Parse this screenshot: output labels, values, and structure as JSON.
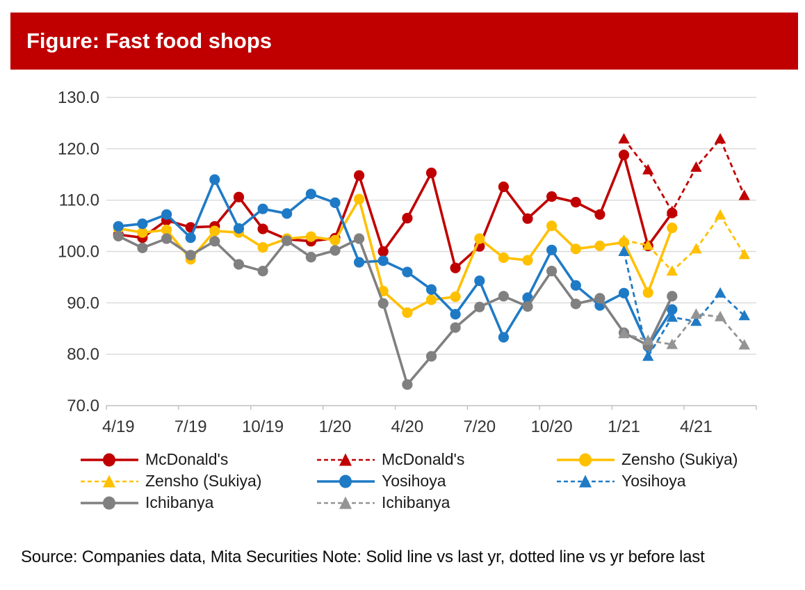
{
  "page": {
    "title": "Figure: Fast food shops",
    "source_note": "Source: Companies data, Mita Securities Note: Solid line vs last yr, dotted line vs yr before last"
  },
  "colors": {
    "banner": "#C00000",
    "red": "#C00000",
    "yellow": "#FFC000",
    "blue": "#1F7AC6",
    "gray": "#808080",
    "gray_dashed": "#949494",
    "gridline": "#D9D9D9",
    "axis_line": "#BFBFBF",
    "axis_text": "#333333"
  },
  "chart_data": {
    "type": "line",
    "title": "Figure: Fast food shops",
    "ylim": [
      70,
      130
    ],
    "grid": "horizontal",
    "legend_position": "bottom",
    "y_tick_labels": [
      "130.0",
      "120.0",
      "110.0",
      "100.0",
      "90.0",
      "80.0",
      "70.0"
    ],
    "y_tick_values": [
      130,
      120,
      110,
      100,
      90,
      80,
      70
    ],
    "x_tick_labels": [
      "4/19",
      "7/19",
      "10/19",
      "1/20",
      "4/20",
      "7/20",
      "10/20",
      "1/21",
      "4/21"
    ],
    "categories": [
      "4/19",
      "5/19",
      "6/19",
      "7/19",
      "8/19",
      "9/19",
      "10/19",
      "11/19",
      "12/19",
      "1/20",
      "2/20",
      "3/20",
      "4/20",
      "5/20",
      "6/20",
      "7/20",
      "8/20",
      "9/20",
      "10/20",
      "11/20",
      "12/20",
      "1/21",
      "2/21",
      "3/21",
      "4/21",
      "5/21",
      "6/21"
    ],
    "series": [
      {
        "name": "McDonald's",
        "color": "#C00000",
        "dash": "solid",
        "marker": "circle",
        "values": [
          103.3,
          102.7,
          106.1,
          104.7,
          104.9,
          110.6,
          104.4,
          102.4,
          102.0,
          102.6,
          114.8,
          100.0,
          106.5,
          115.3,
          96.8,
          101.0,
          112.6,
          106.4,
          110.7,
          109.6,
          107.2,
          118.8,
          101.1,
          107.5,
          null,
          null,
          null
        ]
      },
      {
        "name": "McDonald's",
        "color": "#C00000",
        "dash": "dashed",
        "marker": "triangle",
        "values": [
          null,
          null,
          null,
          null,
          null,
          null,
          null,
          null,
          null,
          null,
          null,
          null,
          null,
          null,
          null,
          null,
          null,
          null,
          null,
          null,
          null,
          121.9,
          115.9,
          107.8,
          116.4,
          121.9,
          110.9
        ]
      },
      {
        "name": "Zensho (Sukiya)",
        "color": "#FFC000",
        "dash": "solid",
        "marker": "circle",
        "values": [
          104.5,
          103.7,
          104.2,
          98.5,
          104.0,
          103.7,
          100.8,
          102.5,
          102.9,
          102.2,
          110.2,
          92.3,
          88.1,
          90.6,
          91.2,
          102.5,
          98.8,
          98.3,
          105.0,
          100.5,
          101.1,
          101.8,
          92.0,
          104.6,
          null,
          null,
          null
        ]
      },
      {
        "name": "Zensho (Sukiya)",
        "color": "#FFC000",
        "dash": "dashed",
        "marker": "triangle",
        "values": [
          null,
          null,
          null,
          null,
          null,
          null,
          null,
          null,
          null,
          null,
          null,
          null,
          null,
          null,
          null,
          null,
          null,
          null,
          null,
          null,
          null,
          102.2,
          101.2,
          96.2,
          100.5,
          107.1,
          99.4
        ]
      },
      {
        "name": "Yosihoya",
        "color": "#1F7AC6",
        "dash": "solid",
        "marker": "circle",
        "values": [
          104.9,
          105.4,
          107.2,
          102.7,
          114.0,
          104.5,
          108.3,
          107.4,
          111.2,
          109.5,
          97.9,
          98.2,
          96.0,
          92.6,
          87.8,
          94.3,
          83.3,
          91.0,
          100.3,
          93.4,
          89.5,
          91.9,
          81.5,
          88.7,
          null,
          null,
          null
        ]
      },
      {
        "name": "Yosihoya",
        "color": "#1F7AC6",
        "dash": "dashed",
        "marker": "triangle",
        "values": [
          null,
          null,
          null,
          null,
          null,
          null,
          null,
          null,
          null,
          null,
          null,
          null,
          null,
          null,
          null,
          null,
          null,
          null,
          null,
          null,
          null,
          100.0,
          79.6,
          87.2,
          86.4,
          91.9,
          87.5
        ]
      },
      {
        "name": "Ichibanya",
        "color": "#808080",
        "dash": "solid",
        "marker": "circle",
        "values": [
          103.0,
          100.7,
          102.5,
          99.3,
          102.0,
          97.5,
          96.2,
          102.1,
          98.9,
          100.2,
          102.5,
          89.9,
          74.1,
          79.6,
          85.2,
          89.2,
          91.3,
          89.3,
          96.2,
          89.8,
          90.9,
          84.2,
          81.7,
          91.3,
          null,
          null,
          null
        ]
      },
      {
        "name": "Ichibanya",
        "color": "#949494",
        "dash": "dashed",
        "marker": "triangle",
        "values": [
          null,
          null,
          null,
          null,
          null,
          null,
          null,
          null,
          null,
          null,
          null,
          null,
          null,
          null,
          null,
          null,
          null,
          null,
          null,
          null,
          null,
          84.0,
          82.7,
          81.9,
          87.8,
          87.3,
          81.8
        ]
      }
    ]
  }
}
